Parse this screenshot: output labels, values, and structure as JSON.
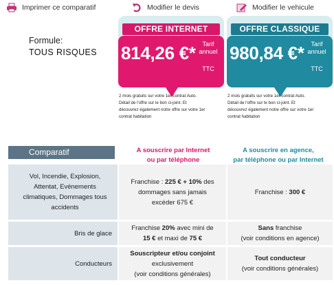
{
  "toolbar": {
    "print_label": "Imprimer ce comparatif",
    "devis_label": "Modifier le devis",
    "vehicule_label": "Modifier le vehicule",
    "print_icon": "printer-icon",
    "devis_icon": "undo-arrow-icon",
    "vehicule_icon": "edit-pencil-icon"
  },
  "formule": {
    "label": "Formule:",
    "value": "TOUS RISQUES"
  },
  "offers": {
    "internet": {
      "title": "OFFRE INTERNET",
      "price": "814,26 €*",
      "tarif_line1": "Tarif",
      "tarif_line2": "annuel",
      "ttc": "TTC",
      "promo_lines": [
        "2 mois gratuits sur votre 1er contrat Auto.",
        "Détail de l'offre sur le bon ci-joint. Et",
        "découvrez également notre offre sur votre 1er",
        "contrat habitation"
      ],
      "color": "#e0196f"
    },
    "classique": {
      "title": "OFFRE CLASSIQUE",
      "price": "980,84 €*",
      "tarif_line1": "Tarif",
      "tarif_line2": "annuel",
      "ttc": "TTC",
      "promo_lines": [
        "2 mois gratuits sur votre 1er contrat Auto.",
        "Détail de l'offre sur le bon ci-joint. Et",
        "découvrez également notre offre sur votre 1er",
        "contrat habitation"
      ],
      "color": "#1f8aa0"
    }
  },
  "comparatif": {
    "title": "Comparatif",
    "col_internet_line1": "A souscrire par Internet",
    "col_internet_line2": "ou par téléphone",
    "col_agence_line1": "A souscrire en agence,",
    "col_agence_line2": "par téléphone ou par Internet",
    "rows": [
      {
        "label_lines": [
          "Vol, Incendie, Explosion,",
          "Attentat, Evénements",
          "climatiques, Dommages tous",
          "accidents"
        ],
        "internet": {
          "l1_pre": "Franchise : ",
          "l1_bold": "225 € + 10%",
          "l1_post": " des",
          "l2": "dommages sans jamais",
          "l3": "excéder 675 €"
        },
        "agence": {
          "pre": "Franchise : ",
          "bold": "300 €"
        }
      },
      {
        "label": "Bris de glace",
        "internet": {
          "l1_pre": "Franchise ",
          "l1_bold": "20%",
          "l1_post": " avec mini de",
          "l2_bold_a": "15 €",
          "l2_mid": " et maxi de ",
          "l2_bold_b": "75 €"
        },
        "agence": {
          "l1_bold": "Sans",
          "l1_post": " franchise",
          "l2": "(voir conditions en agence)"
        }
      },
      {
        "label": "Conducteurs",
        "internet": {
          "l1_bold": "Souscripteur et/ou conjoint",
          "l2": "exclusivement",
          "l3": "(voir conditions générales)"
        },
        "agence": {
          "l1_bold": "Tout conducteur",
          "l2": "(voir conditions générales)"
        }
      }
    ]
  }
}
